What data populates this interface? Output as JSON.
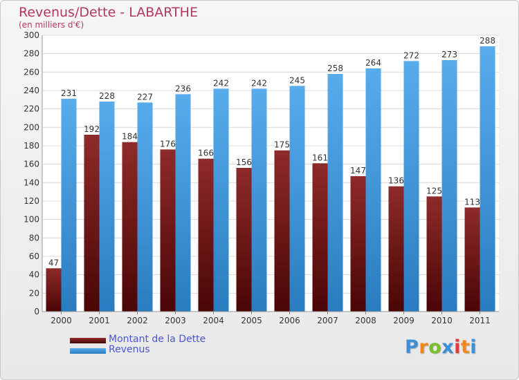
{
  "header": {
    "title": "Revenus/Dette - LABARTHE",
    "subtitle": "(en milliers d'€)"
  },
  "logo": {
    "text": "Proxiti",
    "letters": [
      "P",
      "r",
      "o",
      "x",
      "i",
      "t",
      "i"
    ],
    "colors": [
      "#3d8fd6",
      "#f08a1c",
      "#7cbf2e",
      "#3d8fd6",
      "#e23a3a",
      "#f08a1c",
      "#3d8fd6"
    ]
  },
  "chart_data": {
    "type": "bar",
    "title": "Revenus/Dette - LABARTHE",
    "subtitle": "(en milliers d'€)",
    "categories": [
      "2000",
      "2001",
      "2002",
      "2003",
      "2004",
      "2005",
      "2006",
      "2007",
      "2008",
      "2009",
      "2010",
      "2011"
    ],
    "series": [
      {
        "name": "Montant de la Dette",
        "color": "#7a1a1a",
        "values": [
          47,
          192,
          184,
          176,
          166,
          156,
          175,
          161,
          147,
          136,
          125,
          113
        ]
      },
      {
        "name": "Revenus",
        "color": "#4aa3e6",
        "values": [
          231,
          228,
          227,
          236,
          242,
          242,
          245,
          258,
          264,
          272,
          273,
          288
        ]
      }
    ],
    "ylim": [
      0,
      300
    ],
    "yticks": [
      0,
      20,
      40,
      60,
      80,
      100,
      120,
      140,
      160,
      180,
      200,
      220,
      240,
      260,
      280,
      300
    ],
    "grid": true,
    "legend": "bottom-left"
  }
}
